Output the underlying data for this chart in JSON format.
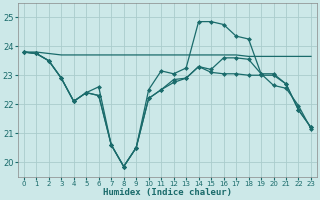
{
  "title": "",
  "xlabel": "Humidex (Indice chaleur)",
  "xlim": [
    -0.5,
    23.5
  ],
  "ylim": [
    19.5,
    25.5
  ],
  "yticks": [
    20,
    21,
    22,
    23,
    24,
    25
  ],
  "xticks": [
    0,
    1,
    2,
    3,
    4,
    5,
    6,
    7,
    8,
    9,
    10,
    11,
    12,
    13,
    14,
    15,
    16,
    17,
    18,
    19,
    20,
    21,
    22,
    23
  ],
  "bg_color": "#cce8e8",
  "grid_color": "#aacccc",
  "line_color": "#1a6b6b",
  "line1_y": [
    23.8,
    23.8,
    23.75,
    23.7,
    23.7,
    23.7,
    23.7,
    23.7,
    23.7,
    23.7,
    23.7,
    23.7,
    23.7,
    23.7,
    23.7,
    23.7,
    23.7,
    23.7,
    23.65,
    23.65,
    23.65,
    23.65,
    23.65,
    23.65
  ],
  "line2_y": [
    23.8,
    23.75,
    23.5,
    22.9,
    22.1,
    22.4,
    22.6,
    20.6,
    19.85,
    20.5,
    22.5,
    23.15,
    23.05,
    23.25,
    24.85,
    24.85,
    24.75,
    24.35,
    24.25,
    23.05,
    23.05,
    22.7,
    21.8,
    21.2
  ],
  "line3_y": [
    23.8,
    23.75,
    23.5,
    22.9,
    22.1,
    22.4,
    22.3,
    20.6,
    19.85,
    20.5,
    22.2,
    22.5,
    22.75,
    22.9,
    23.3,
    23.1,
    23.05,
    23.05,
    23.0,
    23.0,
    23.0,
    22.7,
    21.8,
    21.2
  ],
  "line4_y": [
    23.8,
    23.75,
    23.5,
    22.9,
    22.1,
    22.4,
    22.3,
    20.6,
    19.85,
    20.5,
    22.2,
    22.5,
    22.85,
    22.9,
    23.3,
    23.2,
    23.6,
    23.6,
    23.55,
    23.05,
    22.65,
    22.55,
    21.95,
    21.15
  ],
  "markersize": 2.5,
  "linewidth": 0.9
}
